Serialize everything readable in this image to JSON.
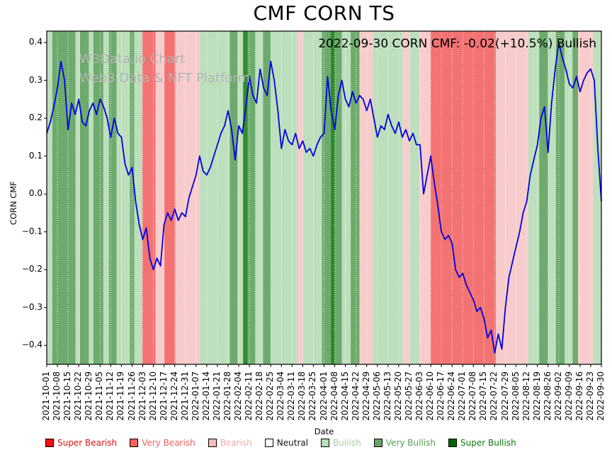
{
  "title": "CMF CORN TS",
  "annotation": "2022-09-30 CORN CMF: -0.02(+10.5%) Bullish",
  "watermark": {
    "line1": "W3Data.io Chart",
    "line2": "Web3 Data & NFT Platform"
  },
  "chart_data": {
    "type": "line",
    "title": "CMF CORN TS",
    "xlabel": "Date",
    "ylabel": "CORN CMF",
    "ylim": [
      -0.45,
      0.43
    ],
    "grid": "vertical-dotted",
    "legend_position": "bottom",
    "line_color": "#0000dd",
    "ytick_values": [
      0.4,
      0.3,
      0.2,
      0.1,
      0.0,
      -0.1,
      -0.2,
      -0.3,
      -0.4
    ],
    "ytick_labels": [
      "0.4",
      "0.3",
      "0.2",
      "0.1",
      "0.0",
      "−0.1",
      "−0.2",
      "−0.3",
      "−0.4"
    ],
    "x_labels": [
      "2021-10-01",
      "2021-10-08",
      "2021-10-15",
      "2021-10-22",
      "2021-10-29",
      "2021-11-05",
      "2021-11-12",
      "2021-11-19",
      "2021-11-26",
      "2021-12-03",
      "2021-12-10",
      "2021-12-17",
      "2021-12-24",
      "2021-12-31",
      "2022-01-07",
      "2022-01-14",
      "2022-01-21",
      "2022-01-28",
      "2022-02-04",
      "2022-02-11",
      "2022-02-18",
      "2022-02-25",
      "2022-03-04",
      "2022-03-11",
      "2022-03-18",
      "2022-03-25",
      "2022-04-01",
      "2022-04-08",
      "2022-04-15",
      "2022-04-22",
      "2022-04-29",
      "2022-05-06",
      "2022-05-13",
      "2022-05-20",
      "2022-05-27",
      "2022-06-03",
      "2022-06-10",
      "2022-06-17",
      "2022-06-24",
      "2022-07-01",
      "2022-07-08",
      "2022-07-15",
      "2022-07-22",
      "2022-07-29",
      "2022-08-05",
      "2022-08-12",
      "2022-08-19",
      "2022-08-26",
      "2022-09-02",
      "2022-09-09",
      "2022-09-16",
      "2022-09-23",
      "2022-09-30"
    ],
    "series": [
      {
        "name": "CORN CMF",
        "values": [
          0.16,
          0.19,
          0.23,
          0.28,
          0.35,
          0.3,
          0.17,
          0.24,
          0.21,
          0.25,
          0.19,
          0.18,
          0.22,
          0.24,
          0.21,
          0.25,
          0.23,
          0.2,
          0.15,
          0.2,
          0.16,
          0.15,
          0.08,
          0.05,
          0.07,
          -0.02,
          -0.08,
          -0.12,
          -0.09,
          -0.17,
          -0.2,
          -0.17,
          -0.19,
          -0.08,
          -0.05,
          -0.07,
          -0.04,
          -0.07,
          -0.05,
          -0.06,
          -0.01,
          0.02,
          0.05,
          0.1,
          0.06,
          0.05,
          0.07,
          0.1,
          0.13,
          0.16,
          0.18,
          0.22,
          0.17,
          0.09,
          0.18,
          0.16,
          0.23,
          0.31,
          0.26,
          0.24,
          0.33,
          0.28,
          0.26,
          0.35,
          0.3,
          0.22,
          0.12,
          0.17,
          0.14,
          0.13,
          0.16,
          0.12,
          0.14,
          0.11,
          0.12,
          0.1,
          0.13,
          0.15,
          0.16,
          0.31,
          0.22,
          0.17,
          0.26,
          0.3,
          0.25,
          0.23,
          0.27,
          0.24,
          0.26,
          0.25,
          0.22,
          0.25,
          0.2,
          0.15,
          0.18,
          0.17,
          0.21,
          0.18,
          0.16,
          0.19,
          0.15,
          0.17,
          0.14,
          0.16,
          0.13,
          0.13,
          0.0,
          0.05,
          0.1,
          0.03,
          -0.03,
          -0.1,
          -0.12,
          -0.11,
          -0.13,
          -0.2,
          -0.22,
          -0.21,
          -0.24,
          -0.26,
          -0.28,
          -0.31,
          -0.3,
          -0.33,
          -0.38,
          -0.36,
          -0.42,
          -0.37,
          -0.41,
          -0.3,
          -0.22,
          -0.18,
          -0.14,
          -0.1,
          -0.05,
          -0.02,
          0.05,
          0.09,
          0.13,
          0.2,
          0.23,
          0.11,
          0.24,
          0.33,
          0.4,
          0.36,
          0.33,
          0.29,
          0.28,
          0.31,
          0.27,
          0.3,
          0.32,
          0.33,
          0.3,
          0.12,
          -0.02
        ]
      }
    ],
    "band_colors": {
      "super_bearish": "#ee1111",
      "very_bearish": "#f37272",
      "bearish": "#f8cccc",
      "neutral": "#ffffff",
      "bullish": "#bedfbe",
      "very_bullish": "#6dab6d",
      "super_bullish": "#2e8b2e"
    },
    "background_bands": [
      {
        "start": 0.0,
        "end": 0.01,
        "category": "bullish"
      },
      {
        "start": 0.01,
        "end": 0.052,
        "category": "very_bullish"
      },
      {
        "start": 0.052,
        "end": 0.06,
        "category": "bullish"
      },
      {
        "start": 0.06,
        "end": 0.076,
        "category": "very_bullish"
      },
      {
        "start": 0.076,
        "end": 0.084,
        "category": "bullish"
      },
      {
        "start": 0.084,
        "end": 0.102,
        "category": "very_bullish"
      },
      {
        "start": 0.102,
        "end": 0.112,
        "category": "bullish"
      },
      {
        "start": 0.112,
        "end": 0.126,
        "category": "very_bullish"
      },
      {
        "start": 0.126,
        "end": 0.15,
        "category": "bullish"
      },
      {
        "start": 0.15,
        "end": 0.158,
        "category": "very_bullish"
      },
      {
        "start": 0.158,
        "end": 0.172,
        "category": "bullish"
      },
      {
        "start": 0.172,
        "end": 0.196,
        "category": "very_bearish"
      },
      {
        "start": 0.196,
        "end": 0.212,
        "category": "bearish"
      },
      {
        "start": 0.212,
        "end": 0.232,
        "category": "very_bearish"
      },
      {
        "start": 0.232,
        "end": 0.276,
        "category": "bearish"
      },
      {
        "start": 0.276,
        "end": 0.33,
        "category": "bullish"
      },
      {
        "start": 0.33,
        "end": 0.344,
        "category": "very_bullish"
      },
      {
        "start": 0.344,
        "end": 0.354,
        "category": "bullish"
      },
      {
        "start": 0.354,
        "end": 0.362,
        "category": "super_bullish"
      },
      {
        "start": 0.362,
        "end": 0.376,
        "category": "very_bullish"
      },
      {
        "start": 0.376,
        "end": 0.39,
        "category": "bullish"
      },
      {
        "start": 0.39,
        "end": 0.404,
        "category": "very_bullish"
      },
      {
        "start": 0.404,
        "end": 0.452,
        "category": "bullish"
      },
      {
        "start": 0.452,
        "end": 0.462,
        "category": "bearish"
      },
      {
        "start": 0.462,
        "end": 0.496,
        "category": "bullish"
      },
      {
        "start": 0.496,
        "end": 0.512,
        "category": "very_bullish"
      },
      {
        "start": 0.512,
        "end": 0.52,
        "category": "super_bullish"
      },
      {
        "start": 0.52,
        "end": 0.532,
        "category": "very_bullish"
      },
      {
        "start": 0.532,
        "end": 0.548,
        "category": "bullish"
      },
      {
        "start": 0.548,
        "end": 0.564,
        "category": "very_bullish"
      },
      {
        "start": 0.564,
        "end": 0.588,
        "category": "bearish"
      },
      {
        "start": 0.588,
        "end": 0.642,
        "category": "bullish"
      },
      {
        "start": 0.642,
        "end": 0.654,
        "category": "bearish"
      },
      {
        "start": 0.654,
        "end": 0.672,
        "category": "bullish"
      },
      {
        "start": 0.672,
        "end": 0.692,
        "category": "bearish"
      },
      {
        "start": 0.692,
        "end": 0.81,
        "category": "very_bearish"
      },
      {
        "start": 0.81,
        "end": 0.868,
        "category": "bearish"
      },
      {
        "start": 0.868,
        "end": 0.888,
        "category": "bullish"
      },
      {
        "start": 0.888,
        "end": 0.904,
        "category": "very_bullish"
      },
      {
        "start": 0.904,
        "end": 0.918,
        "category": "bullish"
      },
      {
        "start": 0.918,
        "end": 0.934,
        "category": "very_bullish"
      },
      {
        "start": 0.934,
        "end": 0.948,
        "category": "bullish"
      },
      {
        "start": 0.948,
        "end": 0.958,
        "category": "very_bullish"
      },
      {
        "start": 0.958,
        "end": 0.986,
        "category": "bearish"
      },
      {
        "start": 0.986,
        "end": 1.0,
        "category": "bullish"
      }
    ]
  },
  "legend": {
    "items": [
      {
        "label": "Super Bearish",
        "color": "#ee1111",
        "text_color": "#e01010"
      },
      {
        "label": "Very Bearish",
        "color": "#f26060",
        "text_color": "#f15f5f"
      },
      {
        "label": "Bearish",
        "color": "#f6bcbc",
        "text_color": "#f3a8a8"
      },
      {
        "label": "Neutral",
        "color": "#ffffff",
        "text_color": "#111111"
      },
      {
        "label": "Bullish",
        "color": "#b9dcb9",
        "text_color": "#a3d0a3"
      },
      {
        "label": "Very Bullish",
        "color": "#63a763",
        "text_color": "#55a055"
      },
      {
        "label": "Super Bullish",
        "color": "#006400",
        "text_color": "#0a7a0a"
      }
    ]
  }
}
